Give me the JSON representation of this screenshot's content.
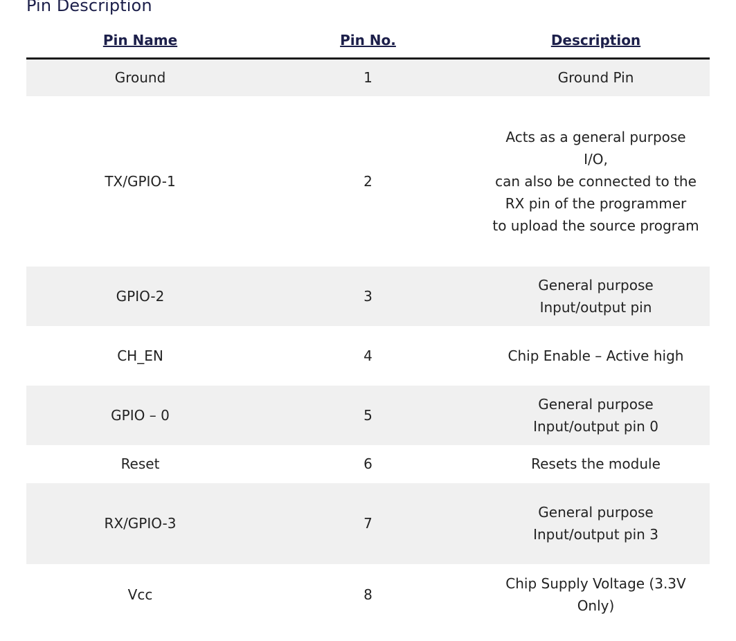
{
  "title": "Pin Description",
  "table": {
    "headers": {
      "pin_name": "Pin Name",
      "pin_no": "Pin No.",
      "description": "Description"
    },
    "rows": [
      {
        "name": "Ground",
        "number": "1",
        "description": "Ground Pin"
      },
      {
        "name": "TX/GPIO-1",
        "number": "2",
        "description_lines": [
          "Acts as a general purpose I/O,",
          "can also be connected to the RX pin of the programmer",
          "to upload the source program"
        ]
      },
      {
        "name": "GPIO-2",
        "number": "3",
        "description": "General purpose Input/output pin"
      },
      {
        "name": "CH_EN",
        "number": "4",
        "description": "Chip Enable – Active high"
      },
      {
        "name": "GPIO – 0",
        "number": "5",
        "description": "General purpose Input/output pin 0"
      },
      {
        "name": "Reset",
        "number": "6",
        "description": "Resets the module"
      },
      {
        "name": "RX/GPIO-3",
        "number": "7",
        "description": "General purpose Input/output pin 3"
      },
      {
        "name": "Vcc",
        "number": "8",
        "description": "Chip Supply Voltage (3.3V Only)"
      }
    ]
  }
}
